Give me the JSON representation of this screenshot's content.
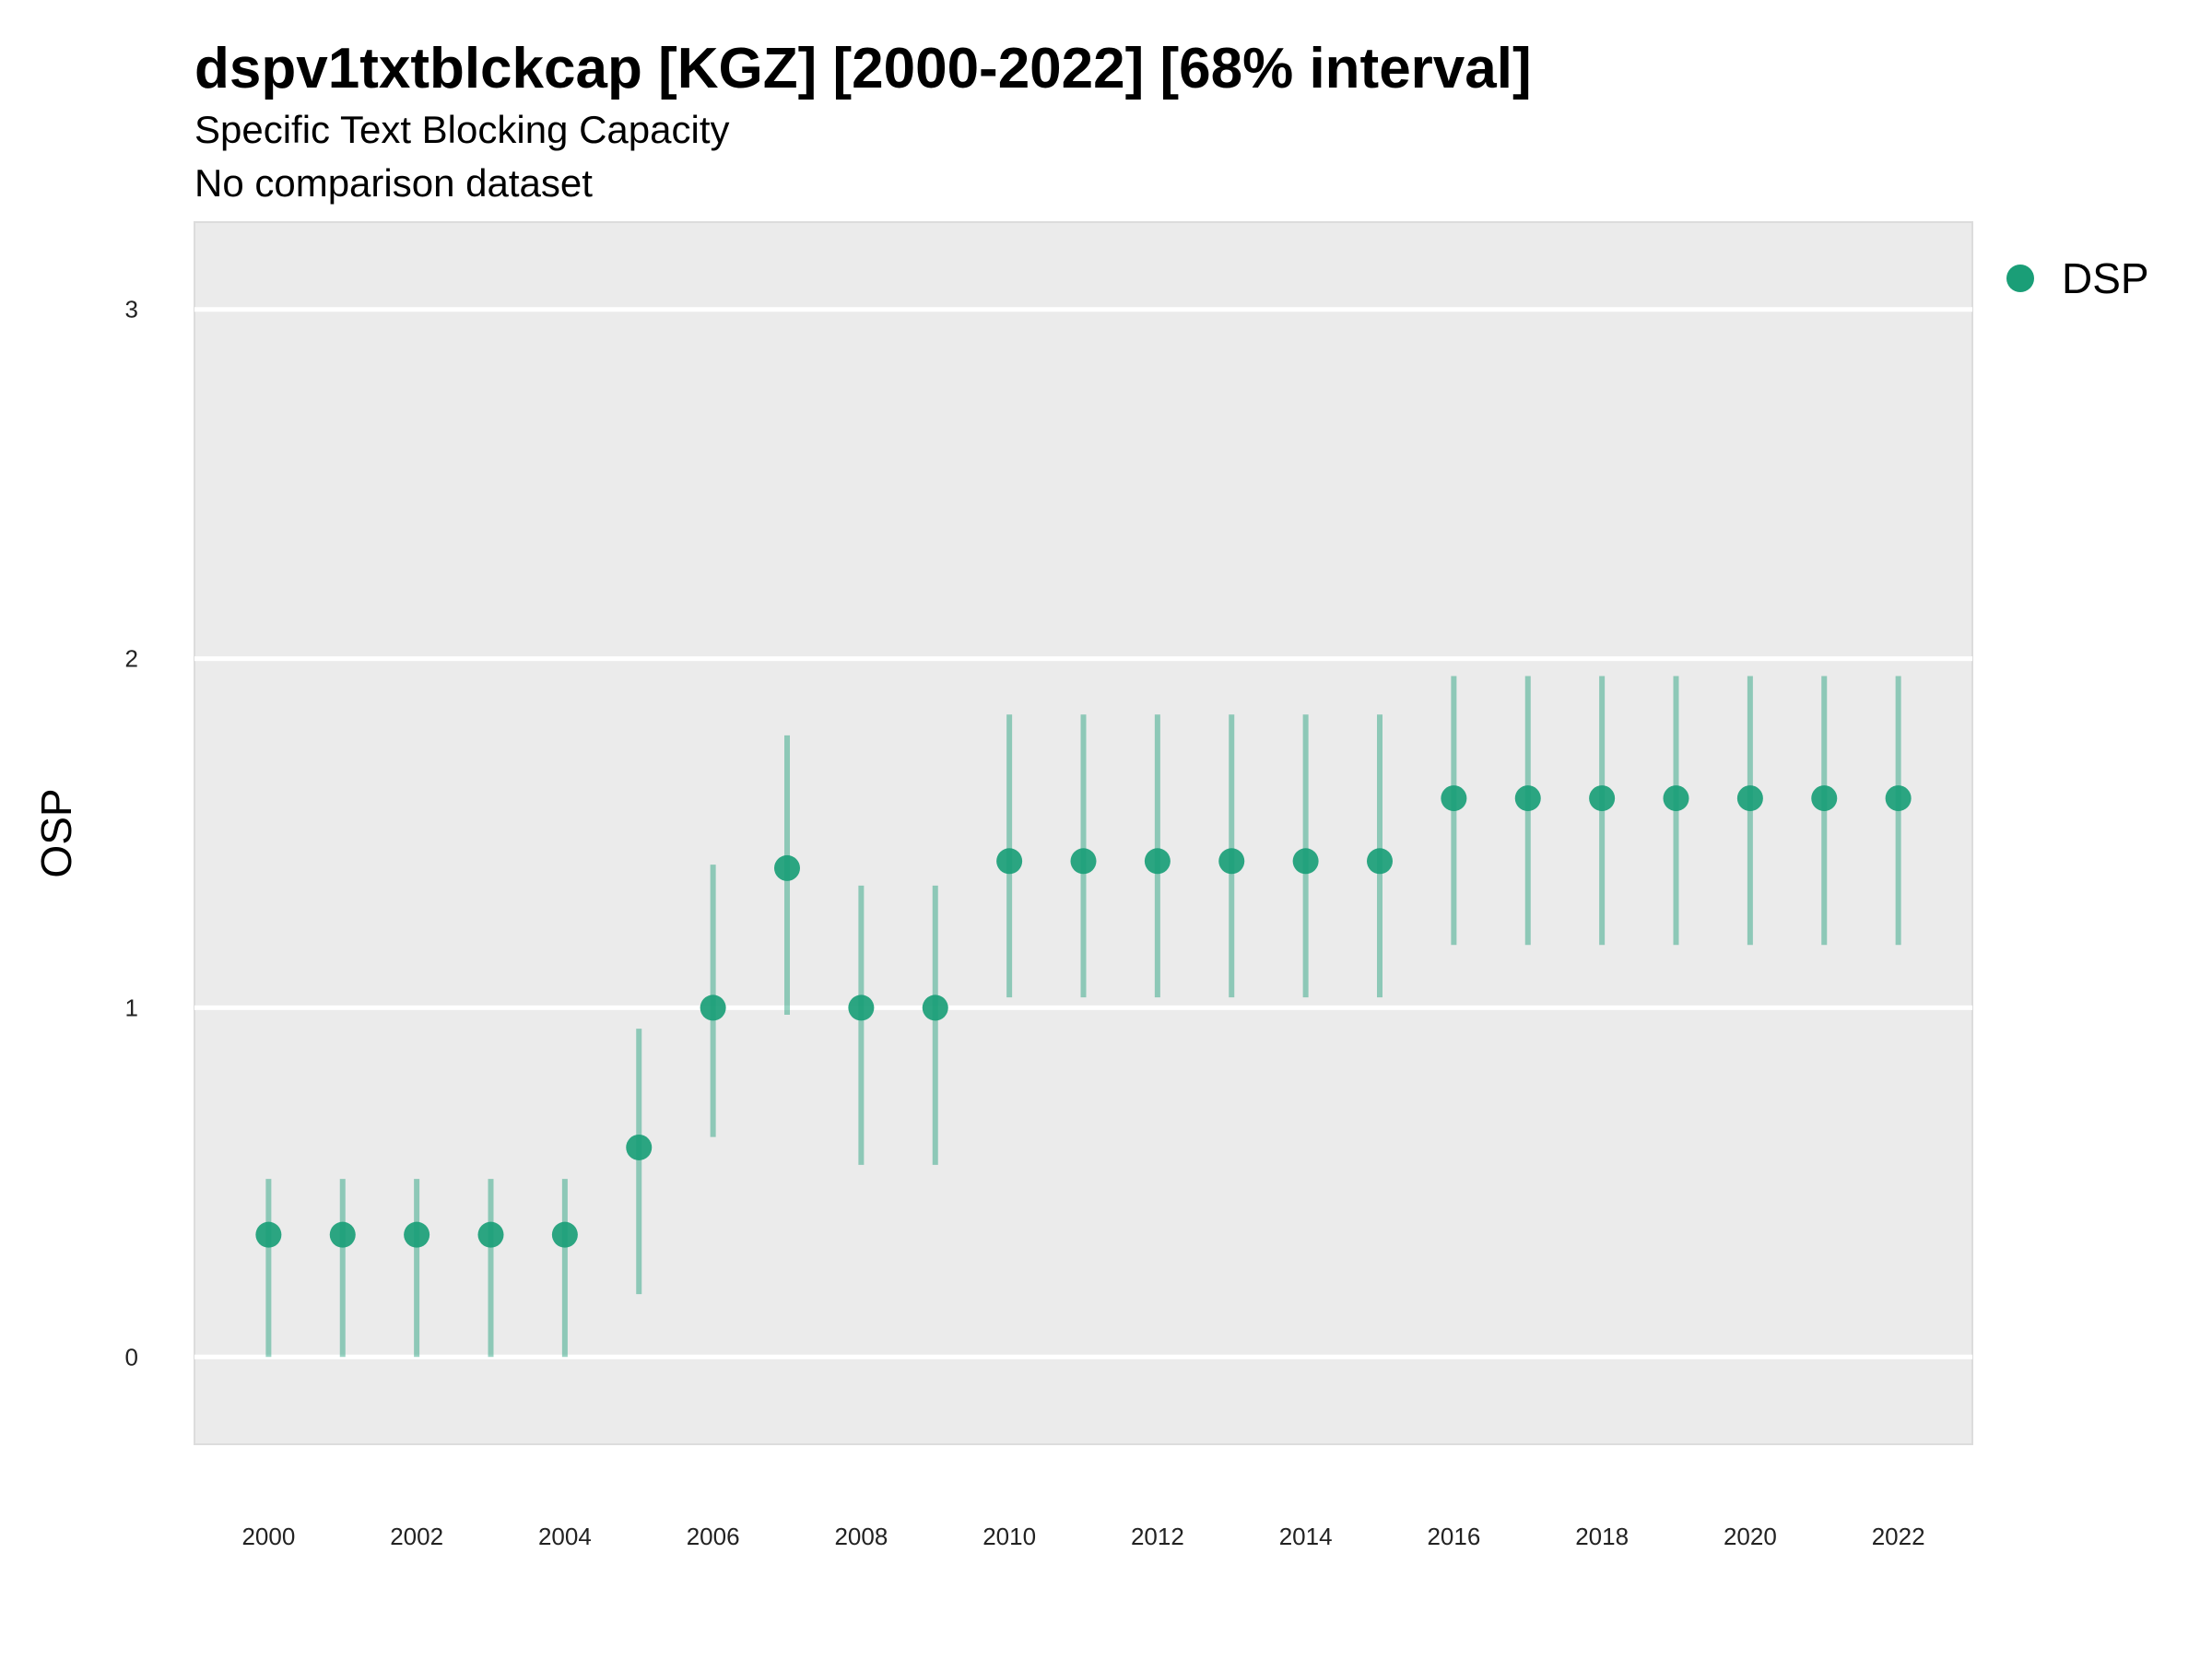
{
  "chart_data": {
    "type": "scatter",
    "title": "dspv1txtblckcap [KGZ] [2000-2022] [68% interval]",
    "subtitle": "Specific Text Blocking Capacity",
    "caption": "No comparison dataset",
    "xlabel": "",
    "ylabel": "OSP",
    "x_ticks": [
      2000,
      2002,
      2004,
      2006,
      2008,
      2010,
      2012,
      2014,
      2016,
      2018,
      2020,
      2022
    ],
    "y_ticks": [
      0,
      1,
      2,
      3
    ],
    "xlim": [
      1999,
      2023
    ],
    "ylim": [
      -0.25,
      3.25
    ],
    "grid": true,
    "legend_position": "right-top",
    "series": [
      {
        "name": "DSP",
        "color": "#1a9e77",
        "x": [
          2000,
          2001,
          2002,
          2003,
          2004,
          2005,
          2006,
          2007,
          2008,
          2009,
          2010,
          2011,
          2012,
          2013,
          2014,
          2015,
          2016,
          2017,
          2018,
          2019,
          2020,
          2021,
          2022
        ],
        "y": [
          0.35,
          0.35,
          0.35,
          0.35,
          0.35,
          0.6,
          1.0,
          1.4,
          1.0,
          1.0,
          1.42,
          1.42,
          1.42,
          1.42,
          1.42,
          1.42,
          1.6,
          1.6,
          1.6,
          1.6,
          1.6,
          1.6,
          1.6
        ],
        "lower": [
          0.0,
          0.0,
          0.0,
          0.0,
          0.0,
          0.18,
          0.63,
          0.98,
          0.55,
          0.55,
          1.03,
          1.03,
          1.03,
          1.03,
          1.03,
          1.03,
          1.18,
          1.18,
          1.18,
          1.18,
          1.18,
          1.18,
          1.18
        ],
        "upper": [
          0.51,
          0.51,
          0.51,
          0.51,
          0.51,
          0.94,
          1.41,
          1.78,
          1.35,
          1.35,
          1.84,
          1.84,
          1.84,
          1.84,
          1.84,
          1.84,
          1.95,
          1.95,
          1.95,
          1.95,
          1.95,
          1.95,
          1.95
        ]
      }
    ]
  }
}
